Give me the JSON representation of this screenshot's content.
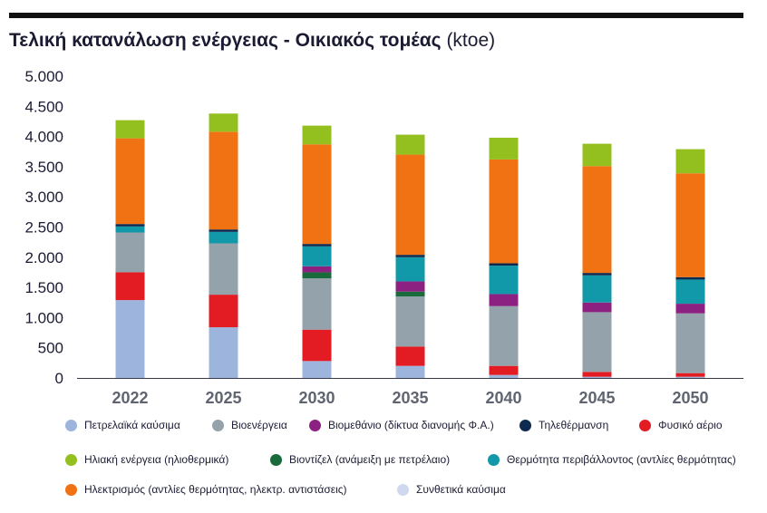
{
  "chart_data": {
    "type": "bar",
    "stacked": true,
    "title_bold": "Τελική κατανάλωση ενέργειας - Οικιακός τομέας",
    "title_unit": "(ktoe)",
    "categories": [
      "2022",
      "2025",
      "2030",
      "2035",
      "2040",
      "2045",
      "2050"
    ],
    "ylim": [
      0,
      5000
    ],
    "yticks": [
      0,
      500,
      1000,
      1500,
      2000,
      2500,
      3000,
      3500,
      4000,
      4500,
      5000
    ],
    "ytick_labels": [
      "0",
      "500",
      "1.000",
      "1.500",
      "2.000",
      "2.500",
      "3.000",
      "3.500",
      "4.000",
      "4.500",
      "5.000"
    ],
    "grid": false,
    "legend_position": "bottom",
    "series": [
      {
        "name": "Πετρελαϊκά καύσιμα",
        "color": "#9db4dd",
        "values": [
          1290,
          840,
          280,
          200,
          50,
          20,
          20
        ]
      },
      {
        "name": "Φυσικό αέριο",
        "color": "#e31b23",
        "values": [
          460,
          540,
          520,
          320,
          150,
          80,
          60
        ]
      },
      {
        "name": "Βιοενέργεια",
        "color": "#94a3ab",
        "values": [
          660,
          850,
          850,
          830,
          990,
          990,
          990
        ]
      },
      {
        "name": "Βιοντίζελ (ανάμειξη με πετρέλαιο)",
        "color": "#1a6b3c",
        "values": [
          0,
          0,
          100,
          80,
          0,
          0,
          0
        ]
      },
      {
        "name": "Βιομεθάνιο (δίκτυα διανομής Φ.Α.)",
        "color": "#8c2181",
        "values": [
          0,
          0,
          100,
          170,
          200,
          160,
          160
        ]
      },
      {
        "name": "Θερμότητα περιβάλλοντος (αντλίες θερμότητας)",
        "color": "#1199a9",
        "values": [
          100,
          190,
          330,
          400,
          470,
          450,
          400
        ]
      },
      {
        "name": "Τηλεθέρμανση",
        "color": "#0e2a4f",
        "values": [
          40,
          40,
          40,
          40,
          40,
          40,
          40
        ]
      },
      {
        "name": "Ηλεκτρισμός (αντλίες θερμότητας, ηλεκτρ. αντιστάσεις)",
        "color": "#f07212",
        "values": [
          1420,
          1620,
          1650,
          1660,
          1720,
          1770,
          1720
        ]
      },
      {
        "name": "Ηλιακή ενέργεια (ηλιοθερμικά)",
        "color": "#93c01f",
        "values": [
          300,
          300,
          310,
          330,
          360,
          370,
          400
        ]
      },
      {
        "name": "Συνθετικά καύσιμα",
        "color": "#cfd8ee",
        "values": [
          0,
          0,
          0,
          0,
          0,
          0,
          0
        ]
      }
    ],
    "legend_rows": [
      [
        "Πετρελαϊκά καύσιμα",
        "Βιοενέργεια",
        "Βιομεθάνιο (δίκτυα διανομής Φ.Α.)",
        "Τηλεθέρμανση",
        "Φυσικό αέριο"
      ],
      [
        "Ηλιακή ενέργεια (ηλιοθερμικά)",
        "Βιοντίζελ (ανάμειξη με πετρέλαιο)",
        "Θερμότητα περιβάλλοντος (αντλίες θερμότητας)"
      ],
      [
        "Ηλεκτρισμός (αντλίες θερμότητας, ηλεκτρ. αντιστάσεις)",
        "Συνθετικά καύσιμα"
      ]
    ]
  }
}
